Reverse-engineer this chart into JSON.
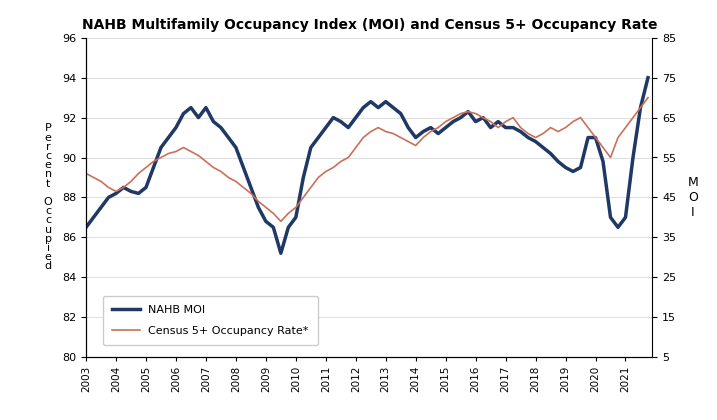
{
  "title": "NAHB Multifamily Occupancy Index (MOI) and Census 5+ Occupancy Rate",
  "ylabel_left": "P\ne\nr\nc\ne\nn\nt\n\nO\nc\nc\nu\np\ni\ne\nd",
  "ylabel_right": "M\nO\nI",
  "ylim_left": [
    80,
    96
  ],
  "ylim_right": [
    5,
    85
  ],
  "yticks_left": [
    80,
    82,
    84,
    86,
    88,
    90,
    92,
    94,
    96
  ],
  "yticks_right": [
    5,
    15,
    25,
    35,
    45,
    55,
    65,
    75,
    85
  ],
  "legend_nahb": "NAHB MOI",
  "legend_census": "Census 5+ Occupancy Rate*",
  "nahb_color": "#1F3864",
  "census_color": "#C9705A",
  "nahb_linewidth": 2.5,
  "census_linewidth": 1.2,
  "xtick_labels": [
    "2003",
    "2004",
    "2005",
    "2006",
    "2007",
    "2008",
    "2009",
    "2010",
    "2011",
    "2012",
    "2013",
    "2014",
    "2015",
    "2016",
    "2017",
    "2018",
    "2019",
    "2020",
    "2021"
  ],
  "nahb_x": [
    2003.0,
    2003.25,
    2003.5,
    2003.75,
    2004.0,
    2004.25,
    2004.5,
    2004.75,
    2005.0,
    2005.25,
    2005.5,
    2005.75,
    2006.0,
    2006.25,
    2006.5,
    2006.75,
    2007.0,
    2007.25,
    2007.5,
    2007.75,
    2008.0,
    2008.25,
    2008.5,
    2008.75,
    2009.0,
    2009.25,
    2009.5,
    2009.75,
    2010.0,
    2010.25,
    2010.5,
    2010.75,
    2011.0,
    2011.25,
    2011.5,
    2011.75,
    2012.0,
    2012.25,
    2012.5,
    2012.75,
    2013.0,
    2013.25,
    2013.5,
    2013.75,
    2014.0,
    2014.25,
    2014.5,
    2014.75,
    2015.0,
    2015.25,
    2015.5,
    2015.75,
    2016.0,
    2016.25,
    2016.5,
    2016.75,
    2017.0,
    2017.25,
    2017.5,
    2017.75,
    2018.0,
    2018.25,
    2018.5,
    2018.75,
    2019.0,
    2019.25,
    2019.5,
    2019.75,
    2020.0,
    2020.25,
    2020.5,
    2020.75,
    2021.0,
    2021.25,
    2021.5,
    2021.75
  ],
  "nahb_y": [
    86.5,
    87.0,
    87.5,
    88.0,
    88.2,
    88.5,
    88.3,
    88.2,
    88.5,
    89.5,
    90.5,
    91.0,
    91.5,
    92.2,
    92.5,
    92.0,
    92.5,
    91.8,
    91.5,
    91.0,
    90.5,
    89.5,
    88.5,
    87.5,
    86.8,
    86.5,
    85.2,
    86.5,
    87.0,
    89.0,
    90.5,
    91.0,
    91.5,
    92.0,
    91.8,
    91.5,
    92.0,
    92.5,
    92.8,
    92.5,
    92.8,
    92.5,
    92.2,
    91.5,
    91.0,
    91.3,
    91.5,
    91.2,
    91.5,
    91.8,
    92.0,
    92.3,
    91.8,
    92.0,
    91.5,
    91.8,
    91.5,
    91.5,
    91.3,
    91.0,
    90.8,
    90.5,
    90.2,
    89.8,
    89.5,
    89.3,
    89.5,
    91.0,
    91.0,
    89.8,
    87.0,
    86.5,
    87.0,
    90.0,
    92.5,
    94.0
  ],
  "census_x": [
    2003.0,
    2003.25,
    2003.5,
    2003.75,
    2004.0,
    2004.25,
    2004.5,
    2004.75,
    2005.0,
    2005.25,
    2005.5,
    2005.75,
    2006.0,
    2006.25,
    2006.5,
    2006.75,
    2007.0,
    2007.25,
    2007.5,
    2007.75,
    2008.0,
    2008.25,
    2008.5,
    2008.75,
    2009.0,
    2009.25,
    2009.5,
    2009.75,
    2010.0,
    2010.25,
    2010.5,
    2010.75,
    2011.0,
    2011.25,
    2011.5,
    2011.75,
    2012.0,
    2012.25,
    2012.5,
    2012.75,
    2013.0,
    2013.25,
    2013.5,
    2013.75,
    2014.0,
    2014.25,
    2014.5,
    2014.75,
    2015.0,
    2015.25,
    2015.5,
    2015.75,
    2016.0,
    2016.25,
    2016.5,
    2016.75,
    2017.0,
    2017.25,
    2017.5,
    2017.75,
    2018.0,
    2018.25,
    2018.5,
    2018.75,
    2019.0,
    2019.25,
    2019.5,
    2019.75,
    2020.0,
    2020.25,
    2020.5,
    2020.75,
    2021.0,
    2021.25,
    2021.5,
    2021.75
  ],
  "census_y": [
    89.2,
    89.0,
    88.8,
    88.5,
    88.3,
    88.5,
    88.8,
    89.2,
    89.5,
    89.8,
    90.0,
    90.2,
    90.3,
    90.5,
    90.3,
    90.1,
    89.8,
    89.5,
    89.3,
    89.0,
    88.8,
    88.5,
    88.2,
    87.8,
    87.5,
    87.2,
    86.8,
    87.2,
    87.5,
    88.0,
    88.5,
    89.0,
    89.3,
    89.5,
    89.8,
    90.0,
    90.5,
    91.0,
    91.3,
    91.5,
    91.3,
    91.2,
    91.0,
    90.8,
    90.6,
    91.0,
    91.3,
    91.5,
    91.8,
    92.0,
    92.2,
    92.3,
    92.2,
    92.0,
    91.8,
    91.5,
    91.8,
    92.0,
    91.5,
    91.2,
    91.0,
    91.2,
    91.5,
    91.3,
    91.5,
    91.8,
    92.0,
    91.5,
    91.0,
    90.5,
    90.0,
    91.0,
    91.5,
    92.0,
    92.5,
    93.0
  ]
}
